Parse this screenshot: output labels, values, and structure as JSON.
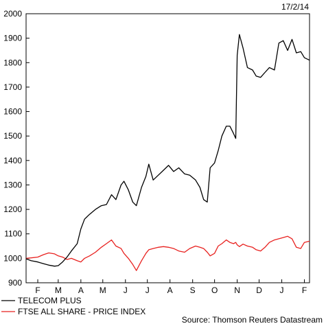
{
  "chart_data": {
    "type": "line",
    "date_label": "17/2/14",
    "source": "Source: Thomson Reuters Datastream",
    "ylim": [
      900,
      2000
    ],
    "y_ticks": [
      900,
      1000,
      1100,
      1200,
      1300,
      1400,
      1500,
      1600,
      1700,
      1800,
      1900,
      2000
    ],
    "x_ticks": [
      "F",
      "M",
      "A",
      "M",
      "J",
      "J",
      "A",
      "S",
      "O",
      "N",
      "D",
      "J",
      "F"
    ],
    "x_range": [
      "2013-01-25",
      "2014-02-17"
    ],
    "x_tick_dates": [
      "2013-02-10",
      "2013-03-10",
      "2013-04-10",
      "2013-05-10",
      "2013-06-10",
      "2013-07-10",
      "2013-08-10",
      "2013-09-10",
      "2013-10-10",
      "2013-11-10",
      "2013-12-10",
      "2014-01-10",
      "2014-02-10"
    ],
    "series": [
      {
        "name": "TELECOM PLUS",
        "color": "#000000",
        "points": [
          [
            "2013-01-25",
            998
          ],
          [
            "2013-02-01",
            990
          ],
          [
            "2013-02-10",
            985
          ],
          [
            "2013-02-18",
            978
          ],
          [
            "2013-02-25",
            972
          ],
          [
            "2013-03-05",
            968
          ],
          [
            "2013-03-10",
            970
          ],
          [
            "2013-03-16",
            985
          ],
          [
            "2013-03-22",
            1005
          ],
          [
            "2013-03-28",
            1030
          ],
          [
            "2013-04-05",
            1060
          ],
          [
            "2013-04-10",
            1120
          ],
          [
            "2013-04-15",
            1160
          ],
          [
            "2013-04-22",
            1180
          ],
          [
            "2013-04-30",
            1200
          ],
          [
            "2013-05-08",
            1215
          ],
          [
            "2013-05-15",
            1220
          ],
          [
            "2013-05-22",
            1260
          ],
          [
            "2013-05-28",
            1240
          ],
          [
            "2013-06-04",
            1300
          ],
          [
            "2013-06-08",
            1315
          ],
          [
            "2013-06-14",
            1280
          ],
          [
            "2013-06-20",
            1230
          ],
          [
            "2013-06-25",
            1215
          ],
          [
            "2013-07-02",
            1290
          ],
          [
            "2013-07-08",
            1335
          ],
          [
            "2013-07-12",
            1385
          ],
          [
            "2013-07-18",
            1320
          ],
          [
            "2013-07-25",
            1340
          ],
          [
            "2013-08-01",
            1360
          ],
          [
            "2013-08-08",
            1380
          ],
          [
            "2013-08-15",
            1355
          ],
          [
            "2013-08-22",
            1370
          ],
          [
            "2013-08-30",
            1345
          ],
          [
            "2013-09-06",
            1340
          ],
          [
            "2013-09-14",
            1320
          ],
          [
            "2013-09-20",
            1290
          ],
          [
            "2013-09-25",
            1240
          ],
          [
            "2013-09-30",
            1230
          ],
          [
            "2013-10-04",
            1370
          ],
          [
            "2013-10-10",
            1390
          ],
          [
            "2013-10-15",
            1440
          ],
          [
            "2013-10-20",
            1500
          ],
          [
            "2013-10-26",
            1540
          ],
          [
            "2013-10-31",
            1540
          ],
          [
            "2013-11-05",
            1510
          ],
          [
            "2013-11-08",
            1490
          ],
          [
            "2013-11-10",
            1830
          ],
          [
            "2013-11-13",
            1915
          ],
          [
            "2013-11-18",
            1860
          ],
          [
            "2013-11-24",
            1780
          ],
          [
            "2013-12-01",
            1770
          ],
          [
            "2013-12-06",
            1745
          ],
          [
            "2013-12-12",
            1740
          ],
          [
            "2013-12-18",
            1760
          ],
          [
            "2013-12-24",
            1780
          ],
          [
            "2013-12-31",
            1770
          ],
          [
            "2014-01-06",
            1880
          ],
          [
            "2014-01-12",
            1890
          ],
          [
            "2014-01-18",
            1850
          ],
          [
            "2014-01-24",
            1895
          ],
          [
            "2014-01-30",
            1840
          ],
          [
            "2014-02-05",
            1845
          ],
          [
            "2014-02-10",
            1820
          ],
          [
            "2014-02-17",
            1810
          ]
        ]
      },
      {
        "name": "FTSE ALL SHARE - PRICE INDEX",
        "color": "#e8201e",
        "points": [
          [
            "2013-01-25",
            1000
          ],
          [
            "2013-02-01",
            1002
          ],
          [
            "2013-02-10",
            1005
          ],
          [
            "2013-02-18",
            1015
          ],
          [
            "2013-02-25",
            1022
          ],
          [
            "2013-03-05",
            1018
          ],
          [
            "2013-03-10",
            1010
          ],
          [
            "2013-03-16",
            1005
          ],
          [
            "2013-03-22",
            995
          ],
          [
            "2013-03-28",
            1000
          ],
          [
            "2013-04-05",
            990
          ],
          [
            "2013-04-10",
            985
          ],
          [
            "2013-04-15",
            1000
          ],
          [
            "2013-04-22",
            1010
          ],
          [
            "2013-04-30",
            1025
          ],
          [
            "2013-05-08",
            1045
          ],
          [
            "2013-05-15",
            1060
          ],
          [
            "2013-05-22",
            1075
          ],
          [
            "2013-05-28",
            1050
          ],
          [
            "2013-06-04",
            1040
          ],
          [
            "2013-06-08",
            1020
          ],
          [
            "2013-06-14",
            1000
          ],
          [
            "2013-06-20",
            975
          ],
          [
            "2013-06-25",
            950
          ],
          [
            "2013-07-02",
            990
          ],
          [
            "2013-07-08",
            1020
          ],
          [
            "2013-07-12",
            1035
          ],
          [
            "2013-07-18",
            1040
          ],
          [
            "2013-07-25",
            1045
          ],
          [
            "2013-08-01",
            1048
          ],
          [
            "2013-08-08",
            1045
          ],
          [
            "2013-08-15",
            1040
          ],
          [
            "2013-08-22",
            1030
          ],
          [
            "2013-08-30",
            1025
          ],
          [
            "2013-09-06",
            1040
          ],
          [
            "2013-09-14",
            1050
          ],
          [
            "2013-09-20",
            1045
          ],
          [
            "2013-09-25",
            1040
          ],
          [
            "2013-09-30",
            1025
          ],
          [
            "2013-10-04",
            1010
          ],
          [
            "2013-10-10",
            1020
          ],
          [
            "2013-10-15",
            1050
          ],
          [
            "2013-10-20",
            1060
          ],
          [
            "2013-10-26",
            1075
          ],
          [
            "2013-10-31",
            1065
          ],
          [
            "2013-11-05",
            1060
          ],
          [
            "2013-11-08",
            1065
          ],
          [
            "2013-11-10",
            1055
          ],
          [
            "2013-11-13",
            1048
          ],
          [
            "2013-11-18",
            1058
          ],
          [
            "2013-11-24",
            1050
          ],
          [
            "2013-12-01",
            1045
          ],
          [
            "2013-12-06",
            1035
          ],
          [
            "2013-12-12",
            1030
          ],
          [
            "2013-12-18",
            1045
          ],
          [
            "2013-12-24",
            1065
          ],
          [
            "2013-12-31",
            1075
          ],
          [
            "2014-01-06",
            1080
          ],
          [
            "2014-01-12",
            1085
          ],
          [
            "2014-01-18",
            1090
          ],
          [
            "2014-01-24",
            1080
          ],
          [
            "2014-01-30",
            1045
          ],
          [
            "2014-02-05",
            1040
          ],
          [
            "2014-02-10",
            1065
          ],
          [
            "2014-02-17",
            1070
          ]
        ]
      }
    ]
  }
}
